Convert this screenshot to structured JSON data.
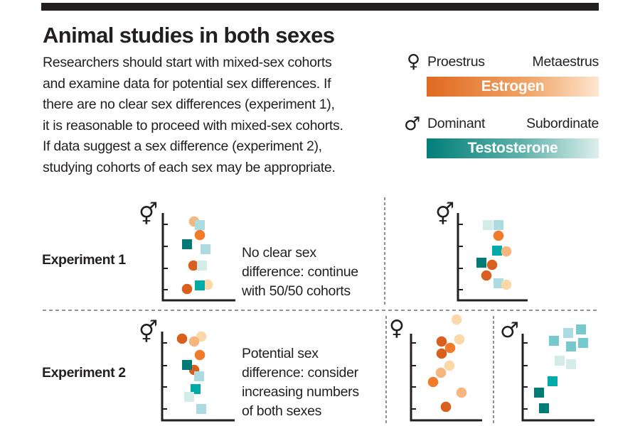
{
  "title": "Animal studies in both sexes",
  "intro_lines": [
    "Researchers should start with mixed-sex cohorts",
    "and examine data for potential sex differences. If",
    "there are no clear sex differences (experiment 1),",
    "it is reasonable to proceed with mixed-sex cohorts.",
    "If data suggest a sex difference (experiment 2),",
    "studying cohorts of each sex may be appropriate."
  ],
  "legend": {
    "female": {
      "symbol": "♀",
      "left_label": "Proestrus",
      "right_label": "Metaestrus",
      "bar_label": "Estrogen"
    },
    "male": {
      "symbol": "♂",
      "left_label": "Dominant",
      "right_label": "Subordinate",
      "bar_label": "Testosterone"
    }
  },
  "experiments": [
    {
      "label": "Experiment 1",
      "note_lines": [
        "No clear sex",
        "difference: continue",
        "with 50/50 cohorts"
      ]
    },
    {
      "label": "Experiment 2",
      "note_lines": [
        "Potential sex",
        "difference: consider",
        "increasing numbers",
        "of both sexes"
      ]
    }
  ],
  "symbols": {
    "mixed": "⚥",
    "female": "♀",
    "male": "♂"
  },
  "palette": {
    "dark_orange": "#d95f1e",
    "orange": "#ef7b2b",
    "light_orange": "#f7b57f",
    "pale_orange": "#fcd8a9",
    "dark_teal": "#007b75",
    "teal": "#00aba7",
    "mid_teal": "#76c9cc",
    "light_teal": "#acdce2",
    "pale_teal": "#d4ece7",
    "ink": "#231f20"
  }
}
